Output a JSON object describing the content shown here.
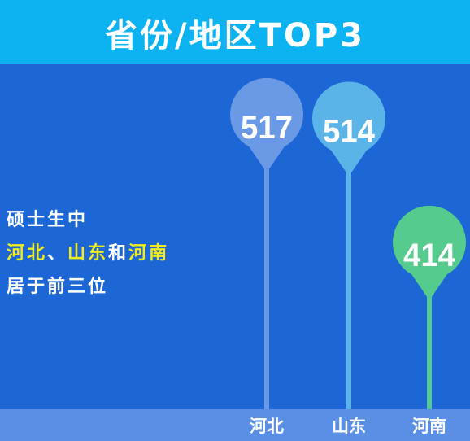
{
  "title": "省份/地区TOP3",
  "caption": {
    "line1": "硕士生中",
    "line2": [
      {
        "text": "河北",
        "highlight": true
      },
      {
        "text": "、",
        "highlight": false
      },
      {
        "text": "山东",
        "highlight": true
      },
      {
        "text": "和",
        "highlight": false
      },
      {
        "text": "河南",
        "highlight": true
      }
    ],
    "line3": "居于前三位"
  },
  "chart_data": {
    "type": "bar",
    "categories": [
      "河北",
      "山东",
      "河南"
    ],
    "values": [
      517,
      514,
      414
    ],
    "colors": [
      "#6a99e6",
      "#5bb4e8",
      "#55cc8e"
    ],
    "title": "省份/地区TOP3",
    "xlabel": "",
    "ylabel": ""
  }
}
